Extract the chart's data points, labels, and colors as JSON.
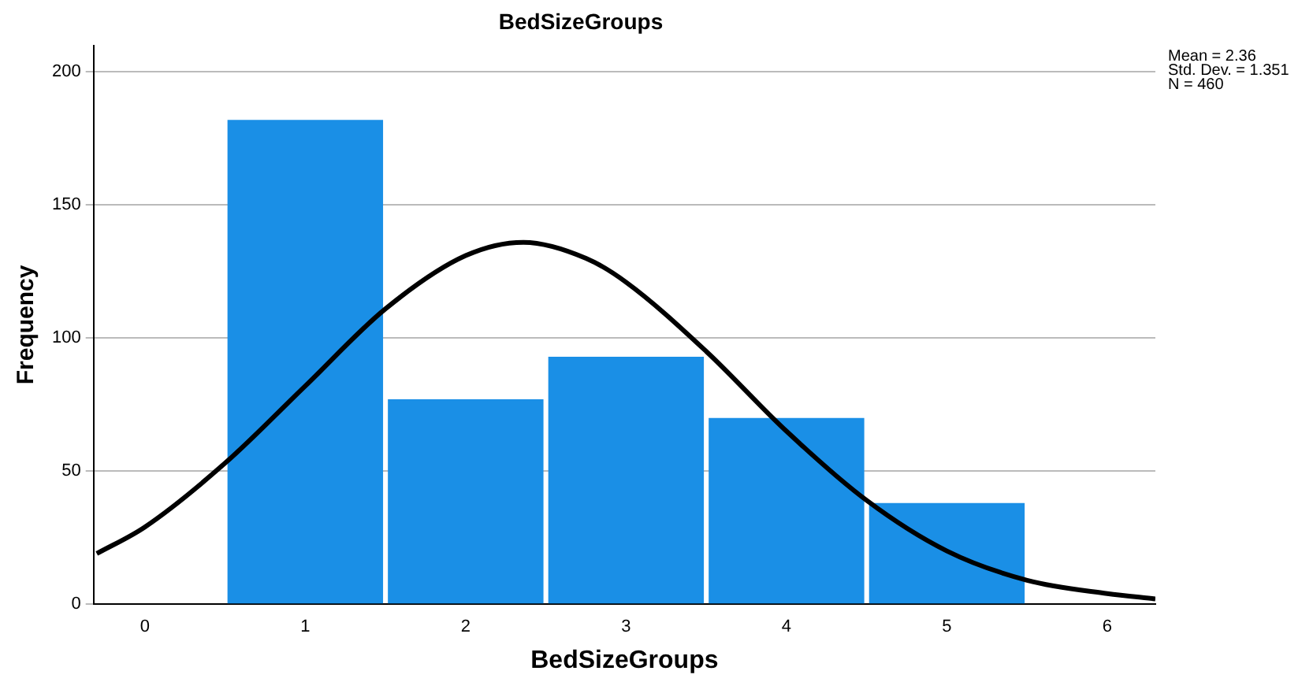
{
  "chart_data": {
    "type": "histogram",
    "title": "BedSizeGroups",
    "xlabel": "BedSizeGroups",
    "ylabel": "Frequency",
    "bins": [
      0.5,
      1.5,
      2.5,
      3.5,
      4.5,
      5.5
    ],
    "values": [
      182,
      77,
      93,
      70,
      38
    ],
    "color": "#1a8fe6",
    "series": [
      {
        "type": "line",
        "color": "#000000",
        "x": [
          -0.3,
          0,
          0.5,
          1,
          1.5,
          2,
          2.36,
          2.75,
          3,
          3.5,
          4,
          4.5,
          5,
          5.5,
          6,
          6.3
        ],
        "values": [
          19,
          29,
          53,
          82,
          111,
          131,
          136,
          130,
          121,
          95,
          65,
          39,
          20,
          9,
          4,
          2
        ]
      }
    ],
    "xlim": [
      -0.32,
      6.3
    ],
    "xticks": [
      0,
      1,
      2,
      3,
      4,
      5,
      6
    ],
    "ylim": [
      0,
      210
    ],
    "yticks": [
      0,
      50,
      100,
      150,
      200
    ],
    "grid": "y",
    "legend": false,
    "marker": "none",
    "line_style": "solid",
    "annotations": [
      "Mean = 2.36",
      "Std. Dev. = 1.351",
      "N = 460"
    ]
  }
}
